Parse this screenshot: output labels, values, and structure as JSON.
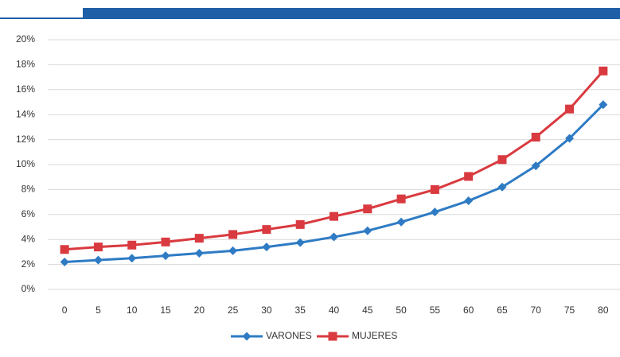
{
  "chart_data": {
    "type": "line",
    "categories": [
      "0",
      "5",
      "10",
      "15",
      "20",
      "25",
      "30",
      "35",
      "40",
      "45",
      "50",
      "55",
      "60",
      "65",
      "70",
      "75",
      "80"
    ],
    "series": [
      {
        "name": "VARONES",
        "color": "#2e7bc4",
        "marker": "diamond",
        "values": [
          2.2,
          2.35,
          2.5,
          2.7,
          2.9,
          3.1,
          3.4,
          3.75,
          4.2,
          4.7,
          5.4,
          6.2,
          7.1,
          8.2,
          9.9,
          12.1,
          14.8
        ]
      },
      {
        "name": "MUJERES",
        "color": "#d93a3f",
        "marker": "square",
        "values": [
          3.2,
          3.4,
          3.55,
          3.8,
          4.1,
          4.4,
          4.8,
          5.2,
          5.85,
          6.45,
          7.25,
          8.0,
          9.05,
          10.4,
          12.2,
          14.45,
          17.5
        ]
      }
    ],
    "ylim": [
      0,
      20
    ],
    "yticks": [
      {
        "value": 0,
        "label": "0%"
      },
      {
        "value": 2,
        "label": "2%"
      },
      {
        "value": 4,
        "label": "4%"
      },
      {
        "value": 6,
        "label": "6%"
      },
      {
        "value": 8,
        "label": "8%"
      },
      {
        "value": 10,
        "label": "10%"
      },
      {
        "value": 12,
        "label": "12%"
      },
      {
        "value": 14,
        "label": "14%"
      },
      {
        "value": 16,
        "label": "16%"
      },
      {
        "value": 18,
        "label": "18%"
      },
      {
        "value": 20,
        "label": "20%"
      }
    ],
    "grid": true,
    "legend": "bottom"
  }
}
